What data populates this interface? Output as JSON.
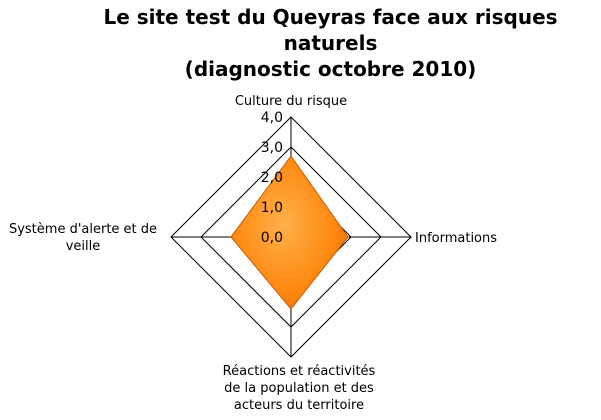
{
  "title_line1": "Le site test du Queyras face aux risques naturels",
  "title_line2": "(diagnostic octobre 2010)",
  "chart_data": {
    "type": "radar",
    "title": "Le site test du Queyras face aux risques naturels (diagnostic octobre 2010)",
    "axes": [
      [
        "Culture du risque"
      ],
      [
        "Informations"
      ],
      [
        "Réactions et réactivités",
        "de la population et des",
        "acteurs du territoire"
      ],
      [
        "Système d'alerte et de",
        "veille"
      ]
    ],
    "ticks": [
      "0,0",
      "1,0",
      "2,0",
      "3,0",
      "4,0"
    ],
    "range": [
      0,
      4
    ],
    "series": [
      {
        "values": [
          2.7,
          1.9,
          2.4,
          2.0
        ],
        "color": "#ff8c1a"
      }
    ],
    "grid": true
  }
}
